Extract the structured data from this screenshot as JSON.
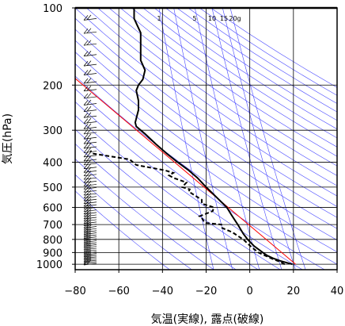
{
  "chart_data": {
    "type": "line",
    "subtype": "skew-T log-p sounding",
    "xlabel": "気温(実線), 露点(破線)",
    "ylabel": "気圧(hPa)",
    "xlim": [
      -80,
      40
    ],
    "ylim": [
      1050,
      100
    ],
    "y_scale": "log",
    "x_ticks": [
      -80,
      -60,
      -40,
      -20,
      0,
      20,
      40
    ],
    "x_tick_labels": [
      "−80",
      "−60",
      "−40",
      "−20",
      "0",
      "20",
      "40"
    ],
    "y_ticks": [
      100,
      200,
      300,
      400,
      500,
      600,
      700,
      800,
      900,
      1000
    ],
    "y_tick_labels": [
      "100",
      "200",
      "300",
      "400",
      "500",
      "600",
      "700",
      "800",
      "900",
      "1000"
    ],
    "mixing_ratio_labels": [
      "1",
      "5",
      "10",
      "15",
      "20g"
    ],
    "grid": true,
    "colors": {
      "temperature": "#000000",
      "dewpoint": "#000000",
      "reference": "#ff0000",
      "adiabats": "#4444ff",
      "mixing_ratio": "#4444ff",
      "grid": "#000000"
    },
    "series": [
      {
        "style": "solid",
        "points": [
          [
            1000,
            19.5
          ],
          [
            970,
            14
          ],
          [
            950,
            11
          ],
          [
            925,
            8
          ],
          [
            900,
            6
          ],
          [
            850,
            2
          ],
          [
            800,
            -1
          ],
          [
            760,
            -3
          ],
          [
            700,
            -5.5
          ],
          [
            670,
            -7
          ],
          [
            640,
            -8.5
          ],
          [
            600,
            -10.5
          ],
          [
            550,
            -15
          ],
          [
            500,
            -20
          ],
          [
            460,
            -24
          ],
          [
            430,
            -28
          ],
          [
            400,
            -33
          ],
          [
            370,
            -38
          ],
          [
            340,
            -43
          ],
          [
            310,
            -48
          ],
          [
            290,
            -52
          ],
          [
            280,
            -52.5
          ],
          [
            270,
            -52
          ],
          [
            250,
            -51
          ],
          [
            230,
            -51
          ],
          [
            210,
            -52
          ],
          [
            200,
            -51
          ],
          [
            190,
            -49
          ],
          [
            175,
            -48
          ],
          [
            160,
            -50
          ],
          [
            140,
            -50
          ],
          [
            125,
            -50
          ],
          [
            110,
            -53
          ],
          [
            100,
            -53
          ]
        ]
      },
      {
        "style": "dashed",
        "points": [
          [
            1000,
            16
          ],
          [
            975,
            13.5
          ],
          [
            950,
            10
          ],
          [
            925,
            7
          ],
          [
            900,
            4
          ],
          [
            860,
            1
          ],
          [
            830,
            -1
          ],
          [
            800,
            -3
          ],
          [
            780,
            -5
          ],
          [
            750,
            -8
          ],
          [
            720,
            -13
          ],
          [
            700,
            -13
          ],
          [
            690,
            -20
          ],
          [
            680,
            -21
          ],
          [
            660,
            -22
          ],
          [
            650,
            -23
          ],
          [
            620,
            -17
          ],
          [
            600,
            -16.5
          ],
          [
            580,
            -22
          ],
          [
            560,
            -22
          ],
          [
            540,
            -25
          ],
          [
            520,
            -28
          ],
          [
            510,
            -27.5
          ],
          [
            500,
            -31
          ],
          [
            480,
            -29
          ],
          [
            460,
            -35
          ],
          [
            450,
            -37
          ],
          [
            440,
            -35
          ],
          [
            430,
            -39
          ],
          [
            410,
            -52
          ],
          [
            390,
            -55
          ],
          [
            370,
            -72
          ],
          [
            360,
            -73
          ]
        ]
      }
    ]
  }
}
